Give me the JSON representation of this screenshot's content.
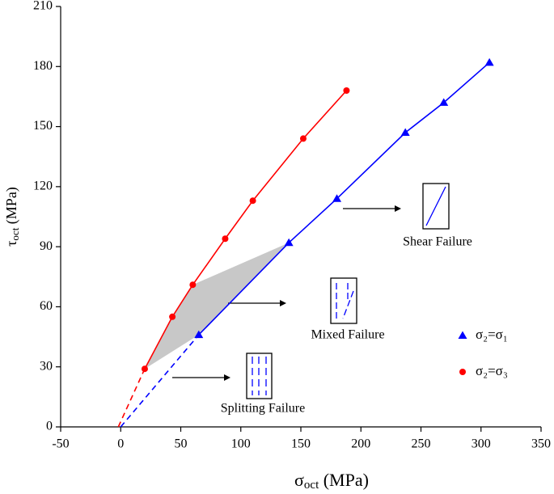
{
  "chart_data": {
    "type": "line",
    "x_label": {
      "base": "σ",
      "sub": "oct",
      "rest": " (MPa)"
    },
    "y_label": {
      "base": "τ",
      "sub": "oct",
      "rest": " (MPa)"
    },
    "xlim": [
      -50,
      350
    ],
    "xticks": [
      -50,
      0,
      50,
      100,
      150,
      200,
      250,
      300,
      350
    ],
    "ylim": [
      0,
      210
    ],
    "yticks": [
      0,
      30,
      60,
      90,
      120,
      150,
      180,
      210
    ],
    "series": [
      {
        "name": "σ₂=σ₁",
        "color": "#0000ff",
        "marker": "triangle",
        "x": [
          65,
          140,
          180,
          237,
          269,
          307
        ],
        "values": [
          46,
          92,
          114,
          147,
          162,
          182
        ],
        "dashed_x": [
          0,
          65
        ],
        "dashed_values": [
          0,
          46
        ]
      },
      {
        "name": "σ₂=σ₃",
        "color": "#ff0000",
        "marker": "circle",
        "x": [
          20,
          43,
          60,
          87,
          110,
          152,
          188
        ],
        "values": [
          29,
          55,
          71,
          94,
          113,
          144,
          168
        ],
        "dashed_x": [
          -2,
          20
        ],
        "dashed_values": [
          0,
          29
        ]
      }
    ],
    "region": {
      "color": "#c8c8c8",
      "x": [
        20,
        43,
        60,
        140,
        65
      ],
      "values": [
        29,
        55,
        71,
        92,
        46
      ]
    },
    "annotations": [
      "Shear Failure",
      "Mixed Failure",
      "Splitting Failure"
    ]
  }
}
